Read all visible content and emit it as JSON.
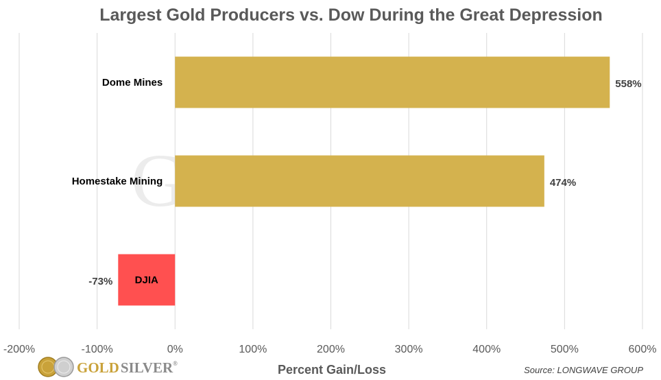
{
  "chart_data": {
    "type": "bar",
    "orientation": "horizontal",
    "title": "Largest Gold Producers vs. Dow During the Great Depression",
    "categories": [
      "Dome Mines",
      "Homestake Mining",
      "DJIA"
    ],
    "values": [
      558,
      474,
      -73
    ],
    "value_labels": [
      "558%",
      "474%",
      "-73%"
    ],
    "colors": [
      "#D4B24E",
      "#D4B24E",
      "#FF5050"
    ],
    "xlabel": "Percent Gain/Loss",
    "ylabel": "",
    "xlim": [
      -200,
      600
    ],
    "xticks": [
      -200,
      -100,
      0,
      100,
      200,
      300,
      400,
      500,
      600
    ],
    "xtick_labels": [
      "-200%",
      "-100%",
      "0%",
      "100%",
      "200%",
      "300%",
      "400%",
      "500%",
      "600%"
    ],
    "grid": true,
    "legend": "none"
  },
  "source": "Source: LONGWAVE GROUP",
  "brand": {
    "word1": "GOLD",
    "word2": "SILVER",
    "tm": "®"
  },
  "watermark": "GOLDSILVER"
}
